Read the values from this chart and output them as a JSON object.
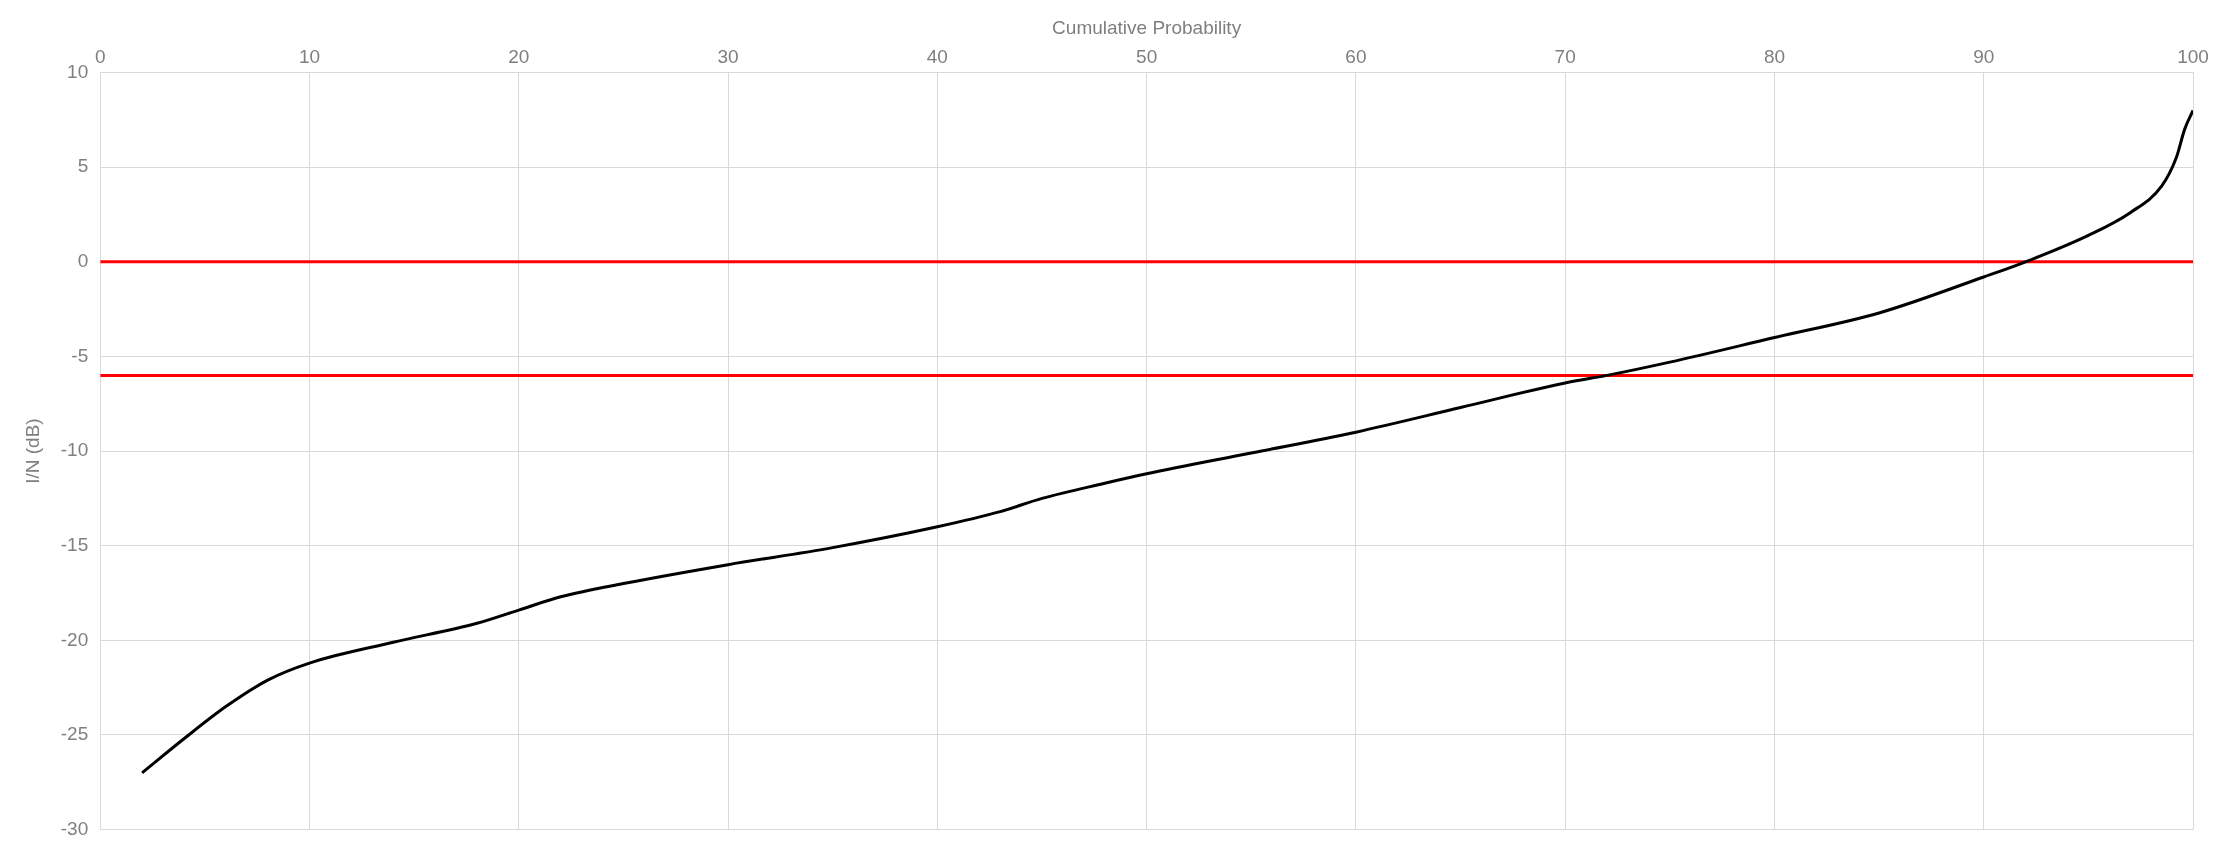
{
  "chart_data": {
    "type": "line",
    "xlabel": "Cumulative Probability",
    "ylabel": "I/N (dB)",
    "xlim": [
      0,
      100
    ],
    "xticks": [
      0,
      10,
      20,
      30,
      40,
      50,
      60,
      70,
      80,
      90,
      100
    ],
    "ylim": [
      -30,
      10
    ],
    "yticks": [
      -30,
      -25,
      -20,
      -15,
      -10,
      -5,
      0,
      5,
      10
    ],
    "grid": true,
    "legend": false,
    "marker": "none",
    "line_style": "solid",
    "series": [
      {
        "color": "#000000",
        "x": [
          2,
          4,
          6,
          8,
          10,
          14,
          18,
          20,
          22,
          25,
          30,
          35,
          40,
          43,
          45,
          48,
          50,
          55,
          60,
          65,
          70,
          72,
          75,
          80,
          85,
          90,
          92,
          95,
          97,
          98.5,
          99.2,
          99.6,
          100
        ],
        "values": [
          -27,
          -25.2,
          -23.5,
          -22.1,
          -21.2,
          -20.1,
          -19.1,
          -18.4,
          -17.7,
          -17,
          -16,
          -15.1,
          -14,
          -13.2,
          -12.5,
          -11.7,
          -11.2,
          -10.1,
          -9,
          -7.7,
          -6.4,
          -6,
          -5.3,
          -4,
          -2.7,
          -0.8,
          0,
          1.4,
          2.6,
          4,
          5.5,
          7,
          8
        ]
      }
    ],
    "ref_lines": [
      {
        "axis": "y",
        "value": 0,
        "color": "#ff0000",
        "line_style": "solid"
      },
      {
        "axis": "y",
        "value": -6,
        "color": "#ff0000",
        "line_style": "solid"
      }
    ]
  }
}
